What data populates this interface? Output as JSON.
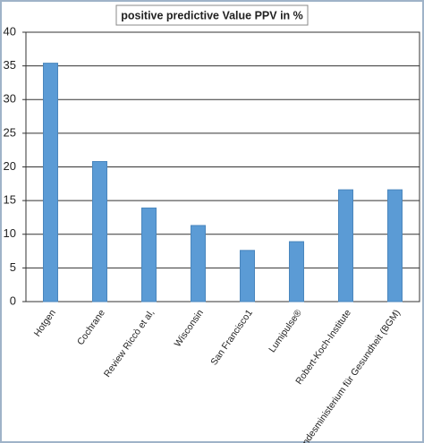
{
  "chart_data": {
    "type": "bar",
    "title": "positive predictive Value PPV in %",
    "categories": [
      "Hotgen",
      "Cochrane",
      "Review Riccò et al,",
      "Wisconsin",
      "San Francisco1",
      "Lumipulse®",
      "Robert-Koch-Institute",
      "Bundesministerium für Gesundheit (BGM)"
    ],
    "values": [
      35.4,
      20.8,
      13.9,
      11.3,
      7.6,
      8.9,
      16.6,
      16.6
    ],
    "color": "#5b9bd5",
    "ylim": [
      0,
      40
    ],
    "yticks": [
      0,
      5,
      10,
      15,
      20,
      25,
      30,
      35,
      40
    ],
    "grid": true
  }
}
